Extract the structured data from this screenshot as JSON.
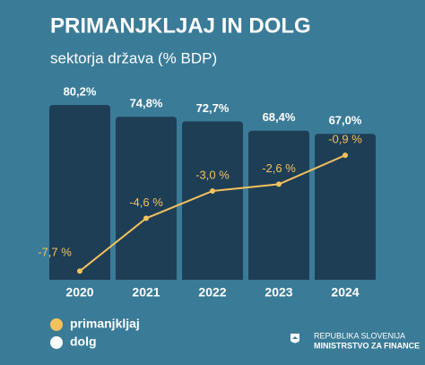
{
  "chart_data": {
    "type": "bar",
    "title": "PRIMANJKLJAJ IN DOLG",
    "subtitle": "sektorja država (% BDP)",
    "categories": [
      "2020",
      "2021",
      "2022",
      "2023",
      "2024"
    ],
    "series": [
      {
        "name": "primanjkljaj",
        "type": "line",
        "color": "#f4c15d",
        "label_color": "#f4c15d",
        "values": [
          -7.7,
          -4.6,
          -3.0,
          -2.6,
          -0.9
        ],
        "value_labels": [
          "-7,7 %",
          "-4,6 %",
          "-3,0 %",
          "-2,6 %",
          "-0,9 %"
        ]
      },
      {
        "name": "dolg",
        "type": "bar",
        "color": "#1e3e56",
        "label_color": "#ffffff",
        "values": [
          80.2,
          74.8,
          72.7,
          68.4,
          67.0
        ],
        "value_labels": [
          "80,2%",
          "74,8%",
          "72,7%",
          "68,4%",
          "67,0%"
        ]
      }
    ],
    "footer": [
      "REPUBLIKA SLOVENIJA",
      "MINISTRSTVO ZA FINANCE"
    ]
  }
}
